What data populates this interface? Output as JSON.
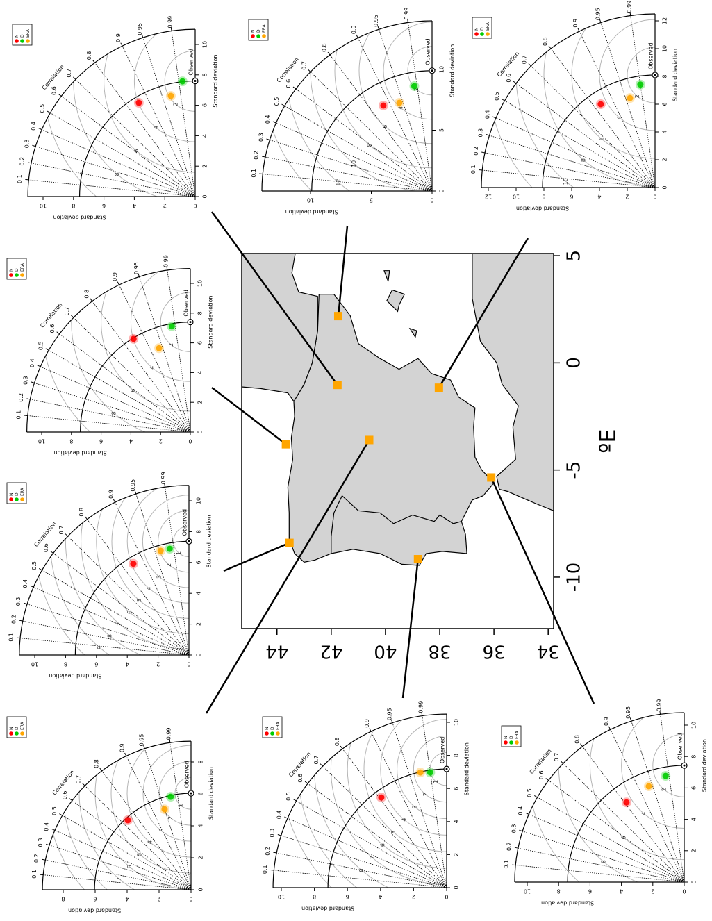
{
  "chart_data": [
    {
      "type": "map",
      "xlabel": "ºE",
      "xlim": [
        -12.4,
        5.1
      ],
      "xticks": [
        -10,
        -5,
        0,
        5
      ],
      "ylim": [
        33.8,
        45.3
      ],
      "yticks": [
        34,
        36,
        38,
        40,
        42,
        44
      ],
      "stations": {
        "color": "#ffa500",
        "lon": [
          2.18,
          -1.03,
          -1.16,
          -3.8,
          -3.6,
          -8.4,
          -9.16,
          -5.35
        ],
        "lat": [
          41.74,
          41.77,
          38.03,
          43.67,
          40.6,
          43.54,
          38.8,
          36.1
        ]
      }
    },
    {
      "type": "taylor",
      "xlabel": "Standard deviation",
      "ylabel": "Standard deviation",
      "corr_label": "Correlation",
      "obs_label": "Observed",
      "sdlim": [
        0,
        11
      ],
      "sdticks": [
        0,
        2,
        4,
        6,
        8,
        10
      ],
      "corr_ticks": [
        0.1,
        0.2,
        0.3,
        0.4,
        0.5,
        0.6,
        0.7,
        0.8,
        0.9,
        0.95,
        0.99
      ],
      "rms_ticks": [
        2,
        4,
        6,
        8,
        10
      ],
      "observed": 7.6,
      "series": [
        {
          "name": "N",
          "color": "#ff0000",
          "sd": 7.19,
          "corr": 0.857
        },
        {
          "name": "D",
          "color": "#00cc00",
          "sd": 7.62,
          "corr": 0.994
        },
        {
          "name": "ERA",
          "color": "#ffa500",
          "sd": 6.81,
          "corr": 0.972
        }
      ]
    },
    {
      "type": "taylor",
      "xlabel": "Standard deviation",
      "ylabel": "Standard deviation",
      "corr_label": "Correlation",
      "obs_label": "Observed",
      "sdlim": [
        0,
        14
      ],
      "sdticks": [
        0,
        5,
        10
      ],
      "corr_ticks": [
        0.1,
        0.2,
        0.3,
        0.4,
        0.5,
        0.6,
        0.7,
        0.8,
        0.9,
        0.95,
        0.99
      ],
      "rms_ticks": [
        2,
        4,
        6,
        8,
        10,
        12,
        14
      ],
      "observed": 9.9,
      "series": [
        {
          "name": "N",
          "color": "#ff0000",
          "sd": 8.09,
          "corr": 0.869
        },
        {
          "name": "D",
          "color": "#00cc00",
          "sd": 8.75,
          "corr": 0.986
        },
        {
          "name": "ERA",
          "color": "#ffa500",
          "sd": 7.74,
          "corr": 0.938
        }
      ]
    },
    {
      "type": "taylor",
      "xlabel": "Standard deviation",
      "ylabel": "Standard deviation",
      "corr_label": "Correlation",
      "obs_label": "Observed",
      "sdlim": [
        0,
        12.5
      ],
      "sdticks": [
        0,
        2,
        4,
        6,
        8,
        10,
        12
      ],
      "corr_ticks": [
        0.1,
        0.2,
        0.3,
        0.4,
        0.5,
        0.6,
        0.7,
        0.8,
        0.9,
        0.95,
        0.99
      ],
      "rms_ticks": [
        2,
        4,
        6,
        8,
        10,
        12
      ],
      "observed": 8.1,
      "series": [
        {
          "name": "N",
          "color": "#ff0000",
          "sd": 7.16,
          "corr": 0.838
        },
        {
          "name": "D",
          "color": "#00cc00",
          "sd": 7.49,
          "corr": 0.99
        },
        {
          "name": "ERA",
          "color": "#ffa500",
          "sd": 6.69,
          "corr": 0.963
        }
      ]
    },
    {
      "type": "taylor",
      "xlabel": "Standard deviation",
      "ylabel": "Standard deviation",
      "corr_label": "Correlation",
      "obs_label": "Observed",
      "sdlim": [
        0,
        11
      ],
      "sdticks": [
        0,
        2,
        4,
        6,
        8,
        10
      ],
      "corr_ticks": [
        0.1,
        0.2,
        0.3,
        0.4,
        0.5,
        0.6,
        0.7,
        0.8,
        0.9,
        0.95,
        0.99
      ],
      "rms_ticks": [
        2,
        4,
        6,
        8,
        10
      ],
      "observed": 7.4,
      "series": [
        {
          "name": "N",
          "color": "#ff0000",
          "sd": 7.34,
          "corr": 0.854
        },
        {
          "name": "D",
          "color": "#00cc00",
          "sd": 7.22,
          "corr": 0.985
        },
        {
          "name": "ERA",
          "color": "#ffa500",
          "sd": 6.02,
          "corr": 0.937
        }
      ]
    },
    {
      "type": "taylor",
      "xlabel": "Standard deviation",
      "ylabel": "Standard deviation",
      "corr_label": "Correlation",
      "obs_label": "Observed",
      "sdlim": [
        0,
        11
      ],
      "sdticks": [
        0,
        2,
        4,
        6,
        8,
        10
      ],
      "corr_ticks": [
        0.1,
        0.2,
        0.3,
        0.4,
        0.5,
        0.6,
        0.7,
        0.8,
        0.9,
        0.95,
        0.99
      ],
      "rms_ticks": [
        1,
        2,
        3,
        4,
        5,
        6,
        7,
        8,
        9,
        10
      ],
      "observed": 7.37,
      "series": [
        {
          "name": "N",
          "color": "#ff0000",
          "sd": 6.93,
          "corr": 0.854
        },
        {
          "name": "D",
          "color": "#00cc00",
          "sd": 7.0,
          "corr": 0.984
        },
        {
          "name": "ERA",
          "color": "#ffa500",
          "sd": 7.0,
          "corr": 0.965
        }
      ]
    },
    {
      "type": "taylor",
      "xlabel": "Standard deviation",
      "ylabel": "Standard deviation",
      "corr_label": "Correlation",
      "obs_label": "Observed",
      "sdlim": [
        0,
        9.3
      ],
      "sdticks": [
        0,
        2,
        4,
        6,
        8
      ],
      "corr_ticks": [
        0.1,
        0.2,
        0.3,
        0.4,
        0.5,
        0.6,
        0.7,
        0.8,
        0.9,
        0.95,
        0.99
      ],
      "rms_ticks": [
        1,
        2,
        3,
        4,
        5,
        6,
        7,
        8,
        9
      ],
      "observed": 6.04,
      "series": [
        {
          "name": "N",
          "color": "#ff0000",
          "sd": 5.88,
          "corr": 0.74
        },
        {
          "name": "D",
          "color": "#00cc00",
          "sd": 5.96,
          "corr": 0.977
        },
        {
          "name": "ERA",
          "color": "#ffa500",
          "sd": 5.3,
          "corr": 0.95
        }
      ]
    },
    {
      "type": "taylor",
      "xlabel": "Standard deviation",
      "ylabel": "Standard deviation",
      "corr_label": "Correlation",
      "obs_label": "Observed",
      "sdlim": [
        0,
        10.5
      ],
      "sdticks": [
        0,
        2,
        4,
        6,
        8,
        10
      ],
      "corr_ticks": [
        0.1,
        0.2,
        0.3,
        0.4,
        0.5,
        0.6,
        0.7,
        0.8,
        0.9,
        0.95,
        0.99
      ],
      "rms_ticks": [
        1,
        2,
        3,
        4,
        5,
        6,
        7,
        8,
        9,
        10
      ],
      "observed": 7.18,
      "series": [
        {
          "name": "N",
          "color": "#ff0000",
          "sd": 6.74,
          "corr": 0.81
        },
        {
          "name": "D",
          "color": "#00cc00",
          "sd": 7.04,
          "corr": 0.99
        },
        {
          "name": "ERA",
          "color": "#ffa500",
          "sd": 7.15,
          "corr": 0.975
        }
      ]
    },
    {
      "type": "taylor",
      "xlabel": "Standard deviation",
      "ylabel": "Standard deviation",
      "corr_label": "Correlation",
      "obs_label": "Observed",
      "sdlim": [
        0,
        10.8
      ],
      "sdticks": [
        0,
        2,
        4,
        6,
        8,
        10
      ],
      "corr_ticks": [
        0.1,
        0.2,
        0.3,
        0.4,
        0.5,
        0.6,
        0.7,
        0.8,
        0.9,
        0.95,
        0.99
      ],
      "rms_ticks": [
        2,
        4,
        6,
        8,
        10
      ],
      "observed": 7.43,
      "series": [
        {
          "name": "N",
          "color": "#ff0000",
          "sd": 6.27,
          "corr": 0.81
        },
        {
          "name": "D",
          "color": "#00cc00",
          "sd": 6.87,
          "corr": 0.985
        },
        {
          "name": "ERA",
          "color": "#ffa500",
          "sd": 6.51,
          "corr": 0.938
        }
      ]
    }
  ]
}
